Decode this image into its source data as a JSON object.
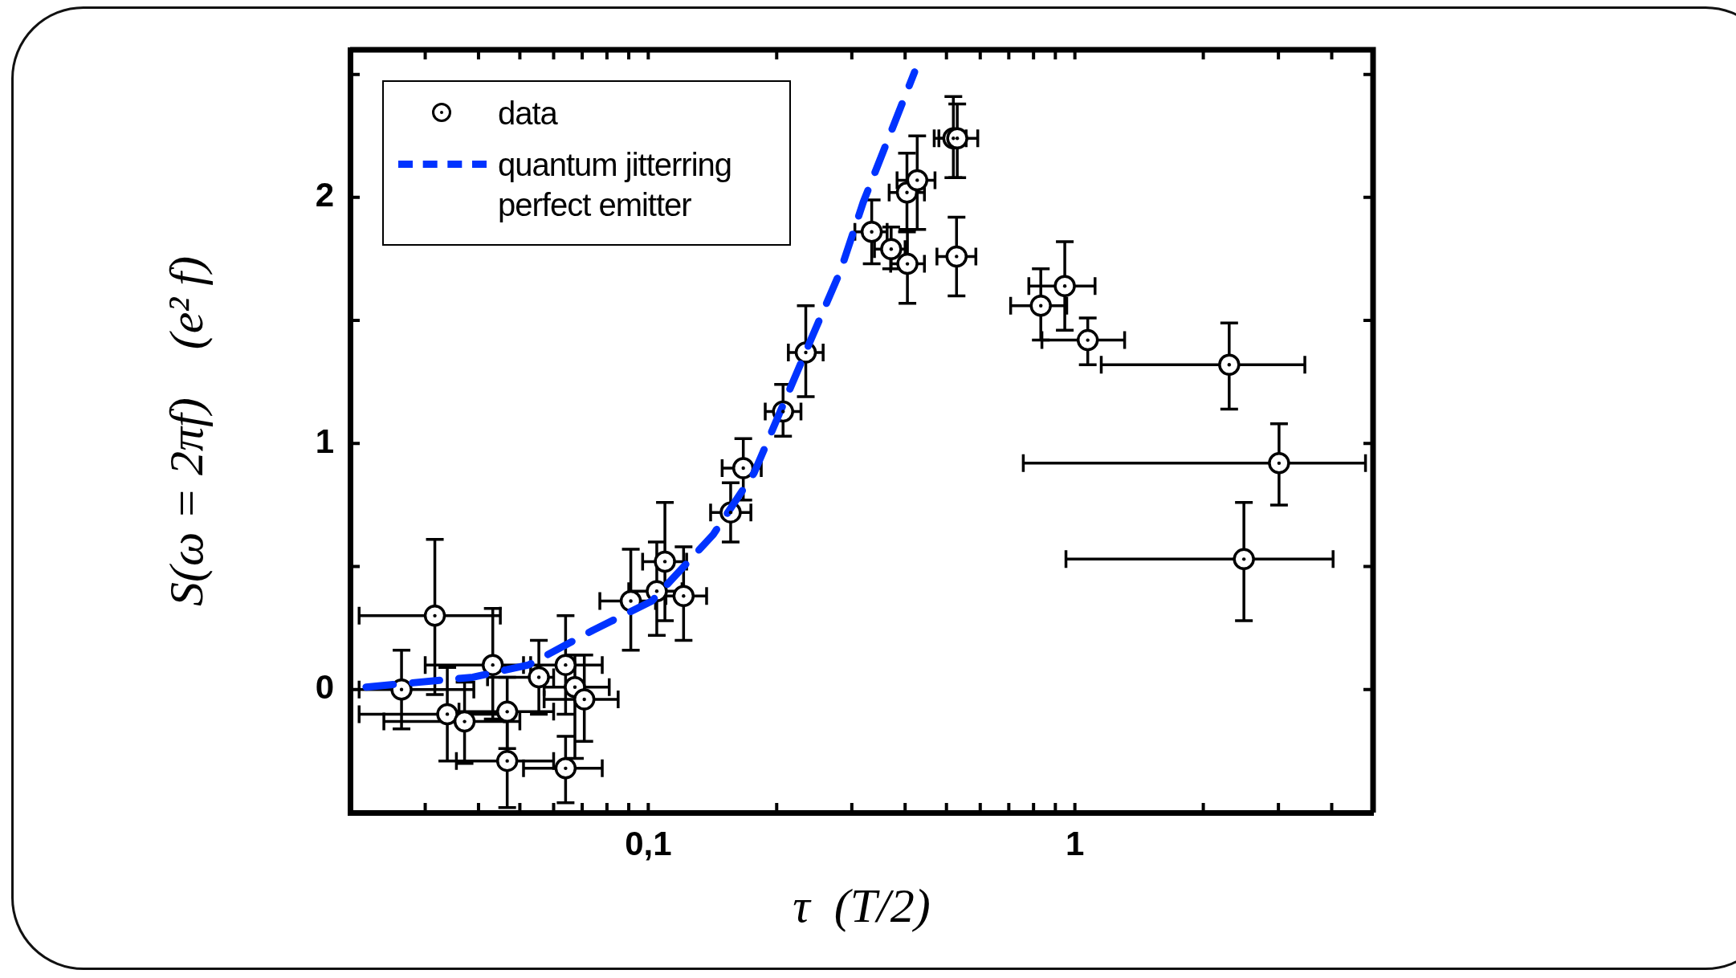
{
  "chart_data": {
    "type": "scatter",
    "xlabel": "τ  (T/2)",
    "ylabel": "S(ω = 2πf)    (e² f)",
    "log": "x",
    "legend": "top left",
    "xlim": [
      0.02,
      5
    ],
    "ylim": [
      -0.5,
      2.6
    ],
    "xticks": [
      {
        "value": 0.02,
        "label": null
      },
      {
        "value": 0.03,
        "label": null
      },
      {
        "value": 0.04,
        "label": null
      },
      {
        "value": 0.05,
        "label": null
      },
      {
        "value": 0.06,
        "label": null
      },
      {
        "value": 0.07,
        "label": null
      },
      {
        "value": 0.08,
        "label": null
      },
      {
        "value": 0.09,
        "label": null
      },
      {
        "value": 0.1,
        "label": "0,1"
      },
      {
        "value": 0.2,
        "label": null
      },
      {
        "value": 0.3,
        "label": null
      },
      {
        "value": 0.4,
        "label": null
      },
      {
        "value": 0.5,
        "label": null
      },
      {
        "value": 0.6,
        "label": null
      },
      {
        "value": 0.7,
        "label": null
      },
      {
        "value": 0.8,
        "label": null
      },
      {
        "value": 0.9,
        "label": null
      },
      {
        "value": 1,
        "label": "1"
      },
      {
        "value": 2,
        "label": null
      },
      {
        "value": 3,
        "label": null
      },
      {
        "value": 4,
        "label": null
      },
      {
        "value": 5,
        "label": null
      }
    ],
    "yticks": [
      {
        "value": -0.5,
        "label": null
      },
      0,
      {
        "value": 0.5,
        "label": null
      },
      1,
      {
        "value": 1.5,
        "label": null
      },
      2,
      {
        "value": 2.5,
        "label": null
      }
    ],
    "series": [
      {
        "name": "data",
        "type": "scatter",
        "color": "#000000",
        "marker": "circle",
        "x": [
          0.0264,
          0.0316,
          0.0338,
          0.0371,
          0.0432,
          0.0467,
          0.0467,
          0.0554,
          0.064,
          0.0673,
          0.064,
          0.0708,
          0.091,
          0.1047,
          0.1094,
          0.121,
          0.156,
          0.167,
          0.207,
          0.234,
          0.334,
          0.371,
          0.404,
          0.405,
          0.427,
          0.519,
          0.53,
          0.528,
          0.832,
          0.947,
          1.072,
          2.3,
          2.49,
          3.01
        ],
        "values": [
          0,
          0.3,
          -0.1,
          -0.13,
          0.1,
          -0.09,
          -0.29,
          0.05,
          0.1,
          0.01,
          -0.32,
          -0.04,
          0.36,
          0.4,
          0.52,
          0.38,
          0.72,
          0.9,
          1.13,
          1.37,
          1.86,
          1.79,
          2.02,
          1.73,
          2.07,
          2.24,
          2.24,
          1.76,
          1.56,
          1.64,
          1.42,
          1.32,
          0.53,
          0.92
        ],
        "errors": [
          [
            -0.16,
            0.16
          ],
          [
            -0.02,
            0.61
          ],
          [
            -0.29,
            0.09
          ],
          [
            -0.3,
            0.03
          ],
          [
            -0.12,
            0.33
          ],
          [
            -0.24,
            0.05
          ],
          [
            -0.48,
            -0.1
          ],
          [
            -0.1,
            0.2
          ],
          [
            -0.1,
            0.3
          ],
          [
            -0.28,
            0.14
          ],
          [
            -0.46,
            -0.19
          ],
          [
            -0.21,
            0.14
          ],
          [
            0.16,
            0.57
          ],
          [
            0.22,
            0.6
          ],
          [
            0.28,
            0.76
          ],
          [
            0.2,
            0.58
          ],
          [
            0.6,
            0.84
          ],
          [
            0.77,
            1.02
          ],
          [
            1.03,
            1.24
          ],
          [
            1.19,
            1.56
          ],
          [
            1.73,
            1.99
          ],
          [
            1.71,
            1.88
          ],
          [
            1.86,
            2.18
          ],
          [
            1.57,
            1.87
          ],
          [
            1.87,
            2.25
          ],
          [
            2.08,
            2.41
          ],
          [
            2.08,
            2.38
          ],
          [
            1.6,
            1.92
          ],
          [
            1.42,
            1.71
          ],
          [
            1.46,
            1.82
          ],
          [
            1.32,
            1.51
          ],
          [
            1.14,
            1.49
          ],
          [
            0.28,
            0.76
          ],
          [
            0.75,
            1.08
          ]
        ],
        "xerrors": [
          [
            0.021,
            0.039
          ],
          [
            0.021,
            0.045
          ],
          [
            0.021,
            0.046
          ],
          [
            0.024,
            0.05
          ],
          [
            0.03,
            0.051
          ],
          [
            0.036,
            0.06
          ],
          [
            0.0355,
            0.06
          ],
          [
            0.042,
            0.06
          ],
          [
            0.053,
            0.078
          ],
          [
            0.057,
            0.081
          ],
          [
            0.051,
            0.078
          ],
          [
            0.057,
            0.085
          ],
          [
            0.077,
            0.104
          ],
          [
            0.09,
            0.12
          ],
          [
            0.097,
            0.123
          ],
          [
            0.11,
            0.137
          ],
          [
            0.14,
            0.174
          ],
          [
            0.149,
            0.184
          ],
          [
            0.188,
            0.228
          ],
          [
            0.213,
            0.257
          ],
          [
            0.305,
            0.363
          ],
          [
            0.339,
            0.4
          ],
          [
            0.367,
            0.444
          ],
          [
            0.37,
            0.444
          ],
          [
            0.383,
            0.47
          ],
          [
            0.468,
            0.556
          ],
          [
            0.48,
            0.592
          ],
          [
            0.475,
            0.586
          ],
          [
            0.707,
            0.957
          ],
          [
            0.78,
            1.115
          ],
          [
            0.837,
            1.308
          ],
          [
            1.153,
            3.46
          ],
          [
            0.953,
            4.03
          ],
          [
            0.757,
            4.8
          ]
        ]
      },
      {
        "name": "quantum jitterring perfect emitter",
        "type": "line",
        "color": "#0033ff",
        "line_style": "dashed",
        "marker": "none",
        "x": [
          0.0218,
          0.0388,
          0.0524,
          0.074,
          0.102,
          0.142,
          0.177,
          0.243,
          0.282,
          0.319,
          0.421
        ],
        "values": [
          0.01,
          0.05,
          0.1,
          0.24,
          0.36,
          0.63,
          0.88,
          1.44,
          1.7,
          1.98,
          2.51
        ]
      }
    ]
  }
}
